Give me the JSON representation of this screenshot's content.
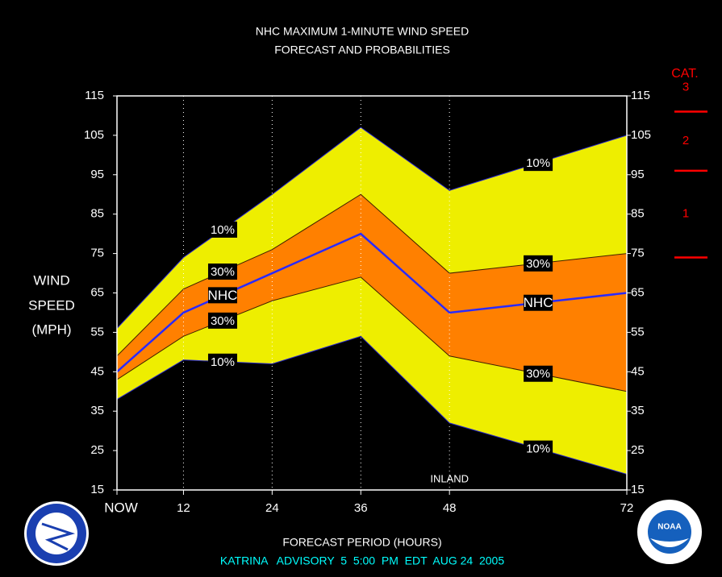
{
  "chart_data": {
    "type": "probability-bands",
    "title": [
      "NHC MAXIMUM 1-MINUTE WIND SPEED",
      "FORECAST AND PROBABILITIES"
    ],
    "ylabel": [
      "WIND",
      "SPEED",
      "(MPH)"
    ],
    "xlabel": "FORECAST PERIOD (HOURS)",
    "footer": "KATRINA   ADVISORY  5  5:00  PM  EDT  AUG 24  2005",
    "x": [
      3,
      12,
      24,
      36,
      48,
      72
    ],
    "xlim": [
      3,
      72
    ],
    "xticks": [
      {
        "value": 3,
        "label": "NOW"
      },
      12,
      24,
      36,
      48,
      72
    ],
    "ylim": [
      15,
      115
    ],
    "yticks": [
      15,
      25,
      35,
      45,
      55,
      65,
      75,
      85,
      95,
      105,
      115
    ],
    "grid": true,
    "series": [
      {
        "name": "10%",
        "color": "#2828d0",
        "fill": "#eeee00",
        "values": [
          56,
          74,
          90,
          107,
          91,
          105
        ]
      },
      {
        "name": "30%",
        "color": "#402000",
        "fill": "#ff8000",
        "values": [
          49,
          66,
          76,
          90,
          70,
          75
        ]
      },
      {
        "name": "NHC",
        "color": "#2a2aff",
        "values": [
          45,
          60,
          70,
          80,
          60,
          65
        ]
      },
      {
        "name": "30%",
        "color": "#402000",
        "values": [
          43,
          54,
          63,
          69,
          49,
          40
        ]
      },
      {
        "name": "10%",
        "color": "#2828d0",
        "values": [
          38,
          48,
          47,
          54,
          32,
          19
        ]
      }
    ],
    "annotations": [
      {
        "text": "INLAND",
        "x": 48
      }
    ],
    "category_scale": {
      "title": "CAT.",
      "color": "#ff0000",
      "levels": [
        {
          "label": "1",
          "min": 74
        },
        {
          "label": "2",
          "min": 96
        },
        {
          "label": "3",
          "min": 111
        }
      ]
    },
    "logos": {
      "right": "NOAA"
    }
  }
}
